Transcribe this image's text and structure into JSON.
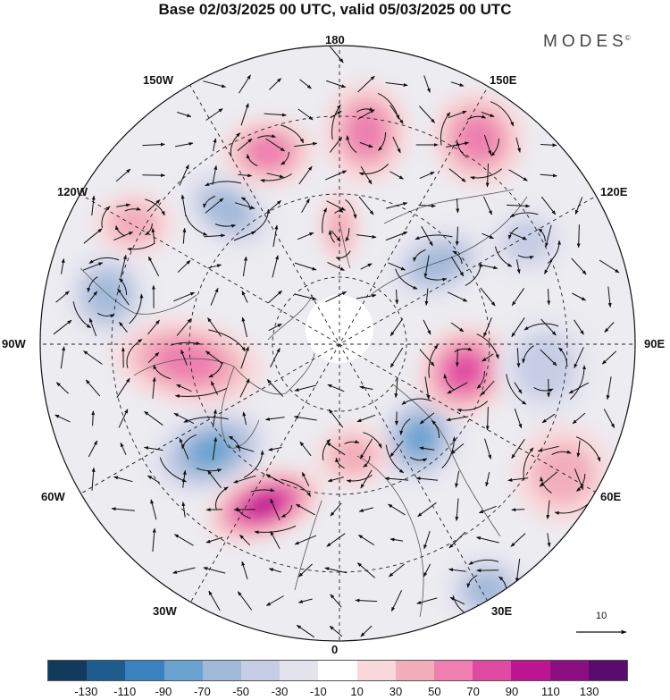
{
  "title": "Base 02/03/2025 00 UTC, valid 05/03/2025 00 UTC",
  "brand": {
    "name": "MODES",
    "mark": "©"
  },
  "longitude_labels": {
    "top": "180",
    "bottom": "0",
    "left": "90W",
    "right": "90E",
    "upper_left_1": "150W",
    "upper_left_2": "120W",
    "upper_right_1": "150E",
    "upper_right_2": "120E",
    "lower_left_1": "60W",
    "lower_left_2": "30W",
    "lower_right_1": "60E",
    "lower_right_2": "30E"
  },
  "wind_reference": {
    "value": "10"
  },
  "colorbar": {
    "colors": [
      "#123a5c",
      "#1d5c8c",
      "#3a81bf",
      "#6aa3d0",
      "#a2bad9",
      "#c7cde4",
      "#e4e4ef",
      "#ffffff",
      "#f8d8da",
      "#f2aebb",
      "#ee7fb0",
      "#df4aa3",
      "#bd1692",
      "#8c0e83",
      "#5a0b70"
    ],
    "ticks": [
      "-130",
      "-110",
      "-90",
      "-70",
      "-50",
      "-30",
      "-10",
      "10",
      "30",
      "50",
      "70",
      "90",
      "110",
      "130"
    ]
  },
  "anomaly_centers": [
    {
      "sign": "negative",
      "level": 70
    },
    {
      "sign": "positive",
      "level": 90
    },
    {
      "sign": "negative",
      "level": 70
    },
    {
      "sign": "positive",
      "level": 70
    },
    {
      "sign": "positive",
      "level": 50
    },
    {
      "sign": "negative",
      "level": 50
    },
    {
      "sign": "positive",
      "level": 50
    },
    {
      "sign": "negative",
      "level": 50
    },
    {
      "sign": "negative",
      "level": 50
    },
    {
      "sign": "positive",
      "level": 50
    },
    {
      "sign": "positive",
      "level": 50
    },
    {
      "sign": "positive",
      "level": 30
    },
    {
      "sign": "negative",
      "level": 50
    },
    {
      "sign": "negative",
      "level": 30
    },
    {
      "sign": "positive",
      "level": 30
    },
    {
      "sign": "positive",
      "level": 30
    },
    {
      "sign": "positive",
      "level": 30
    },
    {
      "sign": "negative",
      "level": 30
    }
  ]
}
